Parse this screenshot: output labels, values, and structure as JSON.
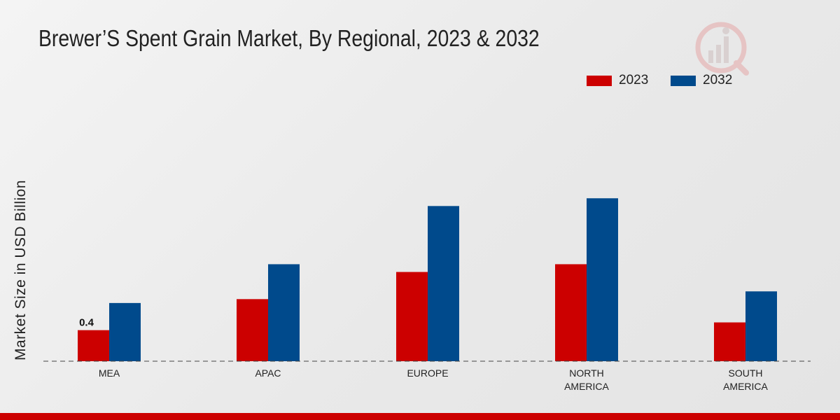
{
  "chart_data": {
    "type": "bar",
    "title": "Brewer’S Spent Grain Market, By Regional, 2023 & 2032",
    "xlabel": "",
    "ylabel": "Market Size in USD Billion",
    "categories": [
      "MEA",
      "APAC",
      "EUROPE",
      "NORTH AMERICA",
      "SOUTH AMERICA"
    ],
    "category_lines": [
      [
        "MEA"
      ],
      [
        "APAC"
      ],
      [
        "EUROPE"
      ],
      [
        "NORTH",
        "AMERICA"
      ],
      [
        "SOUTH",
        "AMERICA"
      ]
    ],
    "series": [
      {
        "name": "2023",
        "color": "#cc0000",
        "values": [
          0.4,
          0.8,
          1.15,
          1.25,
          0.5
        ]
      },
      {
        "name": "2032",
        "color": "#004a8c",
        "values": [
          0.75,
          1.25,
          2.0,
          2.1,
          0.9
        ]
      }
    ],
    "data_labels": [
      {
        "series": 0,
        "category": 0,
        "text": "0.4"
      }
    ],
    "ylim": [
      0,
      2.4
    ],
    "grid": false,
    "legend_position": "top-right"
  }
}
